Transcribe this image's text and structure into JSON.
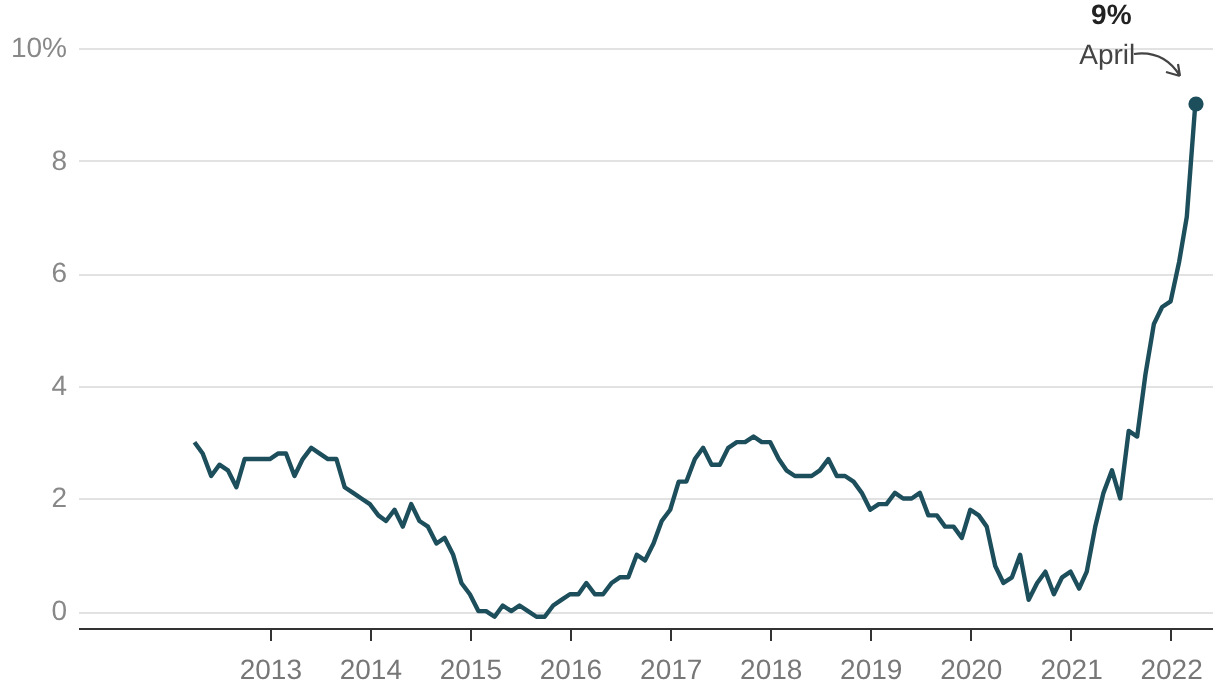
{
  "chart_data": {
    "type": "line",
    "x": [
      "2012-04",
      "2012-05",
      "2012-06",
      "2012-07",
      "2012-08",
      "2012-09",
      "2012-10",
      "2012-11",
      "2012-12",
      "2013-01",
      "2013-02",
      "2013-03",
      "2013-04",
      "2013-05",
      "2013-06",
      "2013-07",
      "2013-08",
      "2013-09",
      "2013-10",
      "2013-11",
      "2013-12",
      "2014-01",
      "2014-02",
      "2014-03",
      "2014-04",
      "2014-05",
      "2014-06",
      "2014-07",
      "2014-08",
      "2014-09",
      "2014-10",
      "2014-11",
      "2014-12",
      "2015-01",
      "2015-02",
      "2015-03",
      "2015-04",
      "2015-05",
      "2015-06",
      "2015-07",
      "2015-08",
      "2015-09",
      "2015-10",
      "2015-11",
      "2015-12",
      "2016-01",
      "2016-02",
      "2016-03",
      "2016-04",
      "2016-05",
      "2016-06",
      "2016-07",
      "2016-08",
      "2016-09",
      "2016-10",
      "2016-11",
      "2016-12",
      "2017-01",
      "2017-02",
      "2017-03",
      "2017-04",
      "2017-05",
      "2017-06",
      "2017-07",
      "2017-08",
      "2017-09",
      "2017-10",
      "2017-11",
      "2017-12",
      "2018-01",
      "2018-02",
      "2018-03",
      "2018-04",
      "2018-05",
      "2018-06",
      "2018-07",
      "2018-08",
      "2018-09",
      "2018-10",
      "2018-11",
      "2018-12",
      "2019-01",
      "2019-02",
      "2019-03",
      "2019-04",
      "2019-05",
      "2019-06",
      "2019-07",
      "2019-08",
      "2019-09",
      "2019-10",
      "2019-11",
      "2019-12",
      "2020-01",
      "2020-02",
      "2020-03",
      "2020-04",
      "2020-05",
      "2020-06",
      "2020-07",
      "2020-08",
      "2020-09",
      "2020-10",
      "2020-11",
      "2020-12",
      "2021-01",
      "2021-02",
      "2021-03",
      "2021-04",
      "2021-05",
      "2021-06",
      "2021-07",
      "2021-08",
      "2021-09",
      "2021-10",
      "2021-11",
      "2021-12",
      "2022-01",
      "2022-02",
      "2022-03",
      "2022-04"
    ],
    "series": [
      {
        "color": "#1d4e5c",
        "values": [
          3.0,
          2.8,
          2.4,
          2.6,
          2.5,
          2.2,
          2.7,
          2.7,
          2.7,
          2.7,
          2.8,
          2.8,
          2.4,
          2.7,
          2.9,
          2.8,
          2.7,
          2.7,
          2.2,
          2.1,
          2.0,
          1.9,
          1.7,
          1.6,
          1.8,
          1.5,
          1.9,
          1.6,
          1.5,
          1.2,
          1.3,
          1.0,
          0.5,
          0.3,
          0.0,
          0.0,
          -0.1,
          0.1,
          0.0,
          0.1,
          0.0,
          -0.1,
          -0.1,
          0.1,
          0.2,
          0.3,
          0.3,
          0.5,
          0.3,
          0.3,
          0.5,
          0.6,
          0.6,
          1.0,
          0.9,
          1.2,
          1.6,
          1.8,
          2.3,
          2.3,
          2.7,
          2.9,
          2.6,
          2.6,
          2.9,
          3.0,
          3.0,
          3.1,
          3.0,
          3.0,
          2.7,
          2.5,
          2.4,
          2.4,
          2.4,
          2.5,
          2.7,
          2.4,
          2.4,
          2.3,
          2.1,
          1.8,
          1.9,
          1.9,
          2.1,
          2.0,
          2.0,
          2.1,
          1.7,
          1.7,
          1.5,
          1.5,
          1.3,
          1.8,
          1.7,
          1.5,
          0.8,
          0.5,
          0.6,
          1.0,
          0.2,
          0.5,
          0.7,
          0.3,
          0.6,
          0.7,
          0.4,
          0.7,
          1.5,
          2.1,
          2.5,
          2.0,
          3.2,
          3.1,
          4.2,
          5.1,
          5.4,
          5.5,
          6.2,
          7.0,
          9.0
        ]
      }
    ],
    "xlim": [
      "2011-02",
      "2022-06"
    ],
    "xticks": [
      "2013",
      "2014",
      "2015",
      "2016",
      "2017",
      "2018",
      "2019",
      "2020",
      "2021",
      "2022"
    ],
    "ylim": [
      -0.3,
      10
    ],
    "yticks": [
      0,
      2,
      4,
      6,
      8,
      {
        "value": 10,
        "label": "10%"
      }
    ],
    "grid": "y",
    "marker": "none",
    "line_style": "solid",
    "annotations": [
      "9%",
      "April"
    ]
  }
}
